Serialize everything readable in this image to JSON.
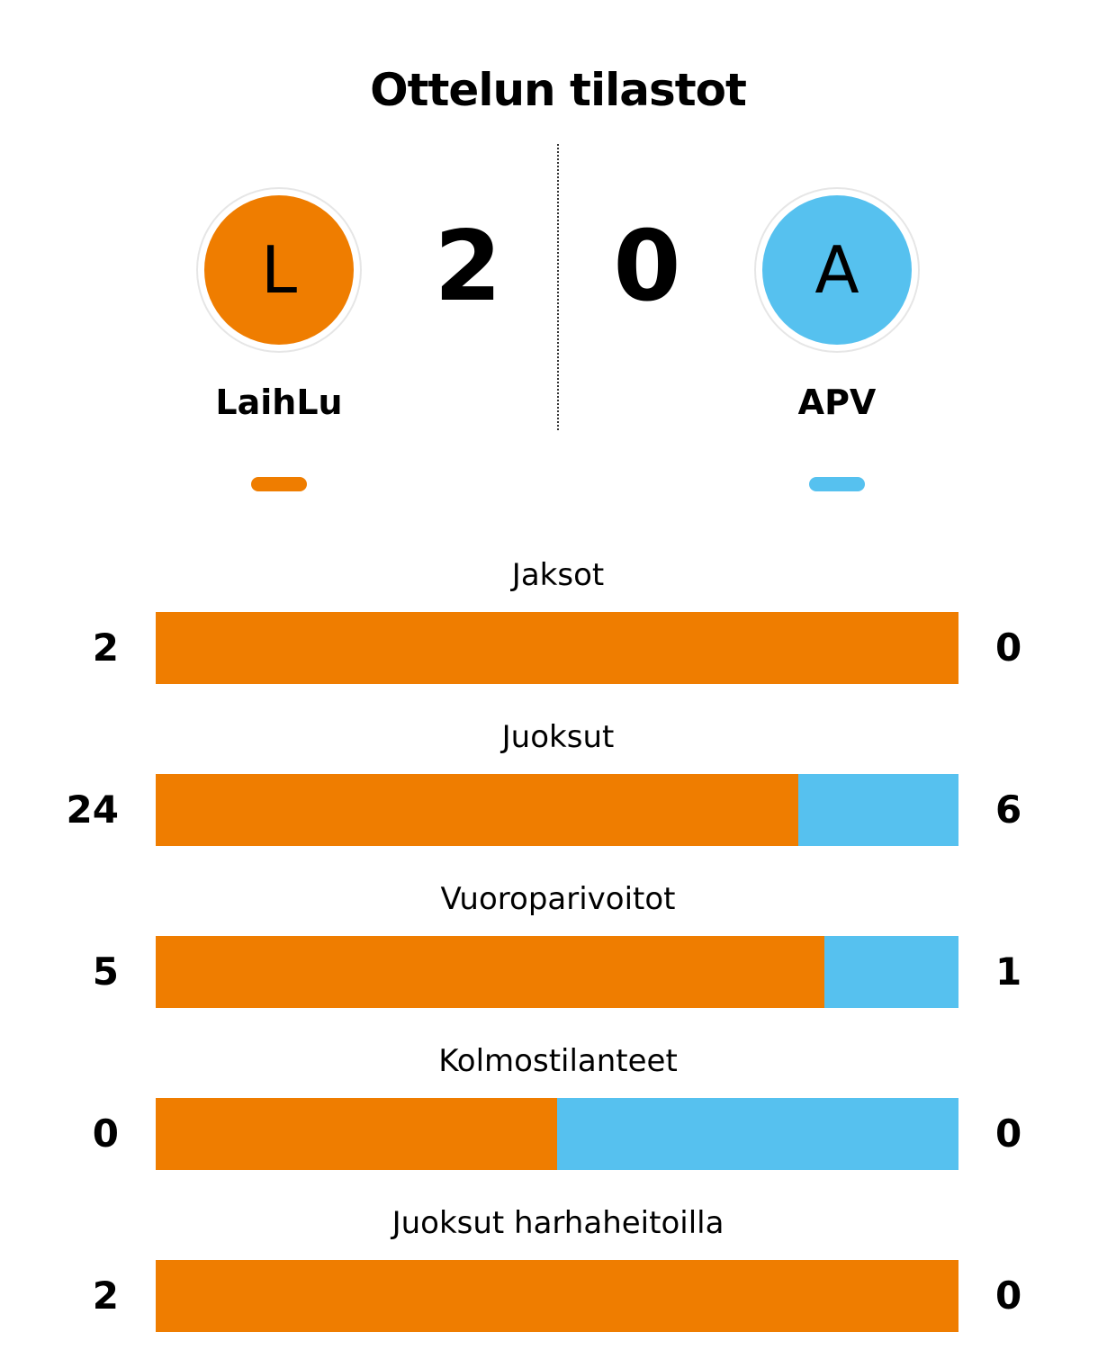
{
  "title": "Ottelun tilastot",
  "colors": {
    "home": "#ef7d00",
    "away": "#56c1ef"
  },
  "home": {
    "name": "LaihLu",
    "logo_letter": "L",
    "score": "2"
  },
  "away": {
    "name": "APV",
    "logo_letter": "A",
    "score": "0"
  },
  "stats": [
    {
      "label": "Jaksot",
      "home": "2",
      "away": "0",
      "home_share": 1.0
    },
    {
      "label": "Juoksut",
      "home": "24",
      "away": "6",
      "home_share": 0.8
    },
    {
      "label": "Vuoroparivoitot",
      "home": "5",
      "away": "1",
      "home_share": 0.833
    },
    {
      "label": "Kolmostilanteet",
      "home": "0",
      "away": "0",
      "home_share": 0.5
    },
    {
      "label": "Juoksut harhaheitoilla",
      "home": "2",
      "away": "0",
      "home_share": 1.0
    }
  ]
}
